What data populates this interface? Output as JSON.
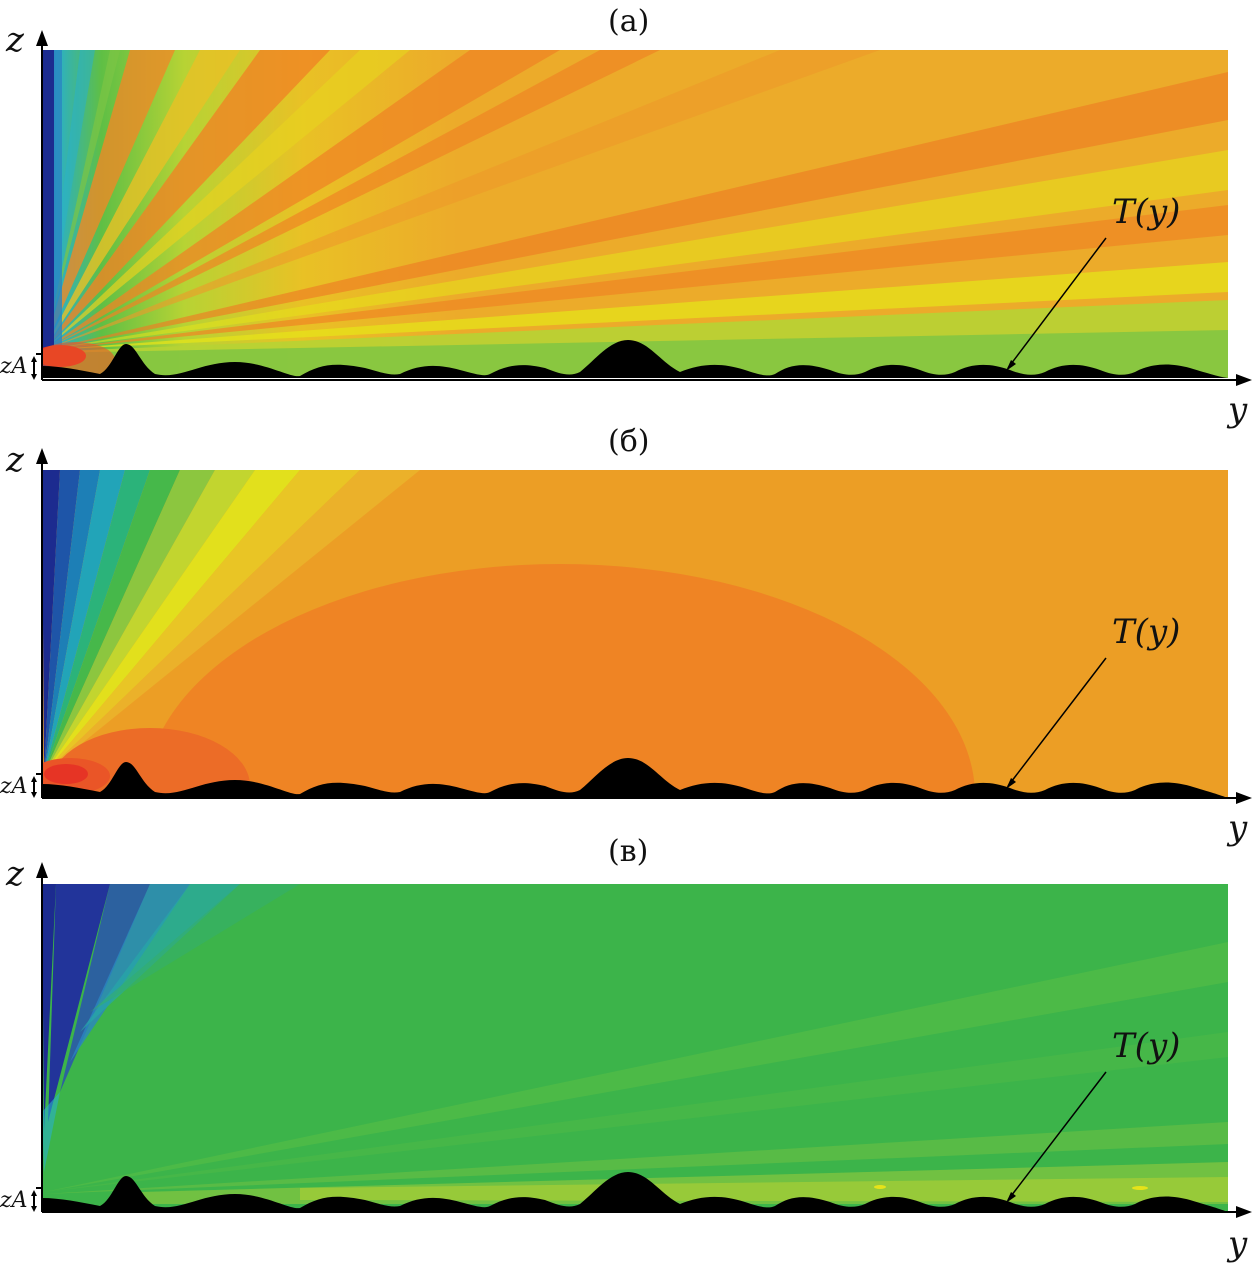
{
  "figure": {
    "panels": [
      {
        "id": "a",
        "title": "(а)",
        "scheme": "rays"
      },
      {
        "id": "b",
        "title": "(б)",
        "scheme": "smooth"
      },
      {
        "id": "c",
        "title": "(в)",
        "scheme": "green"
      }
    ],
    "axis_z": "z",
    "axis_y": "y",
    "zA_label": "zA",
    "curve_label": "T(y)",
    "colors": {
      "deep_blue": "#1c2b8f",
      "cyan": "#2ab0c8",
      "green": "#3cb44a",
      "yellow_green": "#b7d334",
      "yellow": "#e6e319",
      "amber": "#ecab2a",
      "orange": "#ef8424",
      "red_orange": "#ea5527",
      "red": "#e63425",
      "terrain": "#000000"
    }
  }
}
